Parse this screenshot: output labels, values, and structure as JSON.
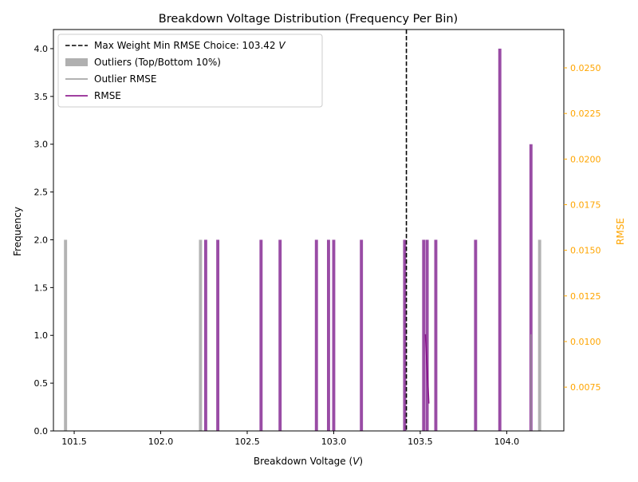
{
  "chart_data": {
    "type": "bar",
    "title": "Breakdown Voltage Distribution (Frequency Per Bin)",
    "xlabel": "Breakdown Voltage (",
    "xlabel_unit": "V",
    "xlabel_close": ")",
    "ylabel": "Frequency",
    "y2label": "RMSE",
    "xlim": [
      101.38,
      104.33
    ],
    "ylim": [
      0,
      4.2
    ],
    "y2lim": [
      0.0051,
      0.0271
    ],
    "xticks": [
      101.5,
      102.0,
      102.5,
      103.0,
      103.5,
      104.0
    ],
    "xtick_labels": [
      "101.5",
      "102.0",
      "102.5",
      "103.0",
      "103.5",
      "104.0"
    ],
    "yticks": [
      0.0,
      0.5,
      1.0,
      1.5,
      2.0,
      2.5,
      3.0,
      3.5,
      4.0
    ],
    "ytick_labels": [
      "0.0",
      "0.5",
      "1.0",
      "1.5",
      "2.0",
      "2.5",
      "3.0",
      "3.5",
      "4.0"
    ],
    "y2ticks": [
      0.0075,
      0.01,
      0.0125,
      0.015,
      0.0175,
      0.02,
      0.0225,
      0.025
    ],
    "y2tick_labels": [
      "0.0075",
      "0.0100",
      "0.0125",
      "0.0150",
      "0.0175",
      "0.0200",
      "0.0225",
      "0.0250"
    ],
    "bin_width": 0.018,
    "series": [
      {
        "name": "Outliers (Top/Bottom 10%)",
        "kind": "bar",
        "color": "#999999",
        "x": [
          101.45,
          102.23,
          104.19
        ],
        "values": [
          2,
          2,
          2
        ]
      },
      {
        "name": "RMSE",
        "kind": "bar",
        "color": "#7f1f8f",
        "x": [
          102.26,
          102.33,
          102.58,
          102.69,
          102.9,
          102.97,
          103.0,
          103.16,
          103.41,
          103.52,
          103.54,
          103.59,
          103.82,
          103.96,
          104.14
        ],
        "values": [
          2,
          2,
          2,
          2,
          2,
          2,
          2,
          2,
          2,
          2,
          2,
          2,
          2,
          4,
          3
        ]
      },
      {
        "name": "Outlier RMSE",
        "kind": "line",
        "color": "#999999",
        "axis": "right",
        "x": [
          104.14,
          104.14
        ],
        "values": [
          0.0051,
          0.0104
        ]
      },
      {
        "name": "RMSE",
        "kind": "line",
        "color": "#800080",
        "axis": "right",
        "x": [
          103.53,
          103.55
        ],
        "values": [
          0.0104,
          0.0066
        ]
      }
    ],
    "vline": {
      "label": "Max Weight Min RMSE Choice: 103.42 ",
      "label_unit": "V",
      "x": 103.42,
      "color": "#000000"
    },
    "legend": {
      "placement": "top-left",
      "entries": [
        {
          "label": "Max Weight Min RMSE Choice: 103.42 ",
          "unit": "V",
          "style": "dashed",
          "color": "#000000"
        },
        {
          "label": "Outliers (Top/Bottom 10%)",
          "style": "patch",
          "color": "#b0b0b0"
        },
        {
          "label": "Outlier RMSE",
          "style": "line",
          "color": "#999999"
        },
        {
          "label": "RMSE",
          "style": "line",
          "color": "#800080"
        }
      ]
    },
    "colors": {
      "right_axis": "#ffa500",
      "rmse_bar": "#7f1f8f",
      "outlier_bar": "#999999"
    }
  }
}
